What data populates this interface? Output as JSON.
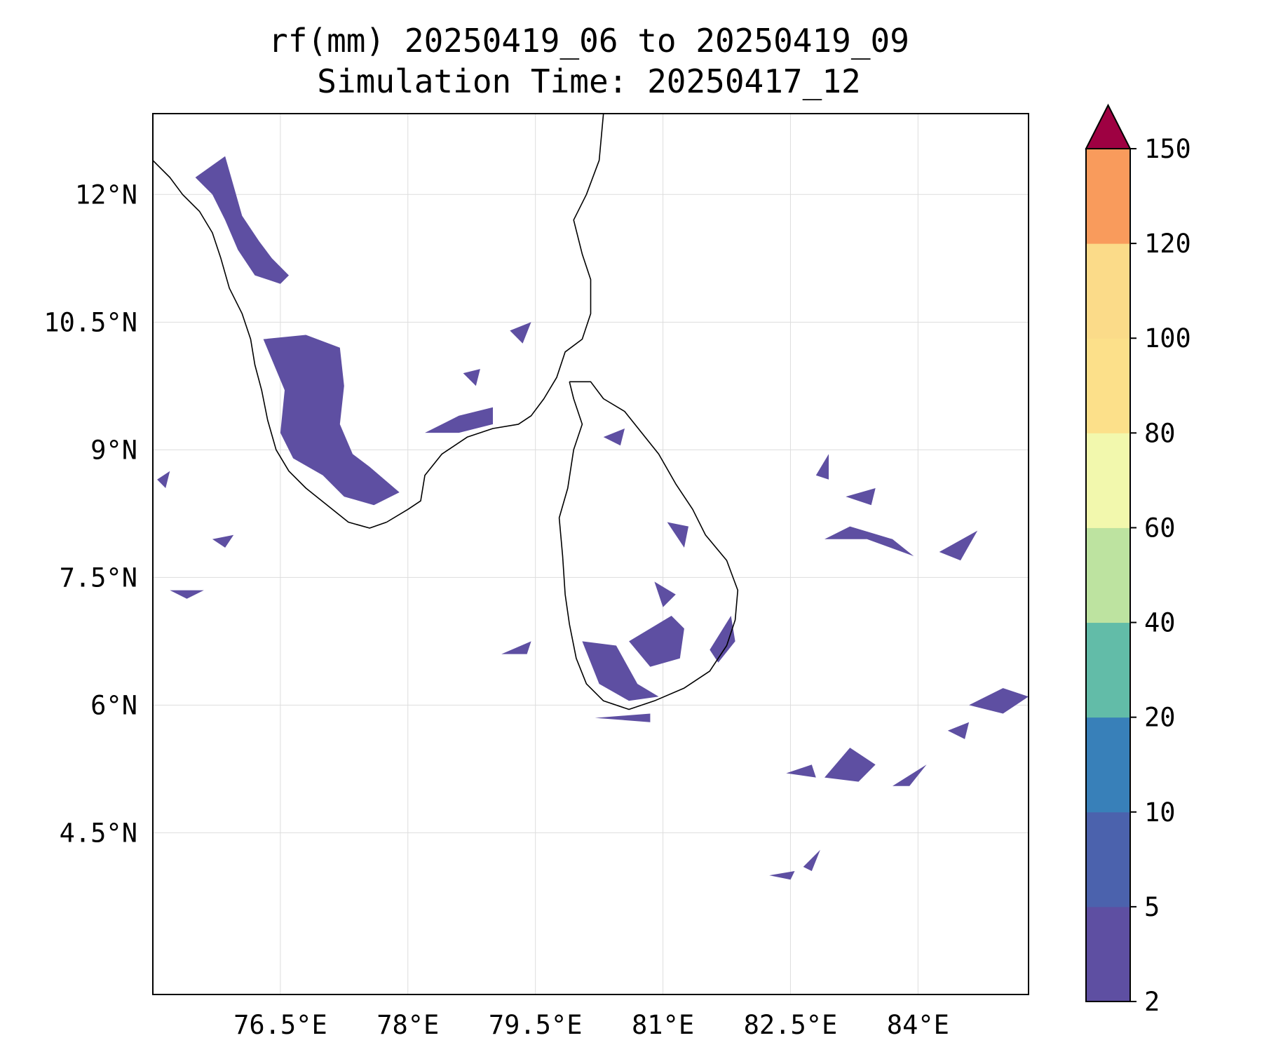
{
  "title": {
    "line1": "rf(mm) 20250419_06 to 20250419_09",
    "line2": "Simulation Time: 20250417_12"
  },
  "map": {
    "lon_range": [
      75.0,
      85.3
    ],
    "lat_range": [
      2.6,
      12.95
    ],
    "lon_ticks": [
      {
        "value": 76.5,
        "label": "76.5°E"
      },
      {
        "value": 78.0,
        "label": "78°E"
      },
      {
        "value": 79.5,
        "label": "79.5°E"
      },
      {
        "value": 81.0,
        "label": "81°E"
      },
      {
        "value": 82.5,
        "label": "82.5°E"
      },
      {
        "value": 84.0,
        "label": "84°E"
      }
    ],
    "lat_ticks": [
      {
        "value": 12.0,
        "label": "12°N"
      },
      {
        "value": 10.5,
        "label": "10.5°N"
      },
      {
        "value": 9.0,
        "label": "9°N"
      },
      {
        "value": 7.5,
        "label": "7.5°N"
      },
      {
        "value": 6.0,
        "label": "6°N"
      },
      {
        "value": 4.5,
        "label": "4.5°N"
      }
    ],
    "grid": true
  },
  "colorbar": {
    "levels": [
      2,
      5,
      10,
      20,
      40,
      60,
      80,
      100,
      120,
      150
    ],
    "colors": [
      "#5e4fa2",
      "#4b62ad",
      "#3880b9",
      "#62bca8",
      "#bde3a0",
      "#f2f8ad",
      "#fce08a",
      "#fbdb89",
      "#f99b5c",
      "#d53e4f"
    ],
    "extend_color": "#9e0142",
    "extend": "max"
  },
  "coastline": {
    "india_west": [
      [
        75.0,
        12.4
      ],
      [
        75.2,
        12.2
      ],
      [
        75.35,
        12.0
      ],
      [
        75.55,
        11.8
      ],
      [
        75.7,
        11.55
      ],
      [
        75.8,
        11.25
      ],
      [
        75.9,
        10.9
      ],
      [
        76.05,
        10.6
      ],
      [
        76.15,
        10.3
      ],
      [
        76.2,
        10.0
      ],
      [
        76.28,
        9.7
      ],
      [
        76.35,
        9.35
      ],
      [
        76.45,
        9.0
      ],
      [
        76.6,
        8.75
      ],
      [
        76.8,
        8.55
      ],
      [
        77.05,
        8.35
      ],
      [
        77.3,
        8.15
      ],
      [
        77.55,
        8.08
      ],
      [
        77.75,
        8.15
      ]
    ],
    "india_east": [
      [
        77.75,
        8.15
      ],
      [
        78.0,
        8.3
      ],
      [
        78.15,
        8.4
      ],
      [
        78.2,
        8.7
      ],
      [
        78.4,
        8.95
      ],
      [
        78.7,
        9.15
      ],
      [
        79.0,
        9.25
      ],
      [
        79.3,
        9.3
      ],
      [
        79.45,
        9.4
      ],
      [
        79.6,
        9.6
      ],
      [
        79.75,
        9.85
      ],
      [
        79.85,
        10.15
      ],
      [
        80.05,
        10.3
      ],
      [
        80.15,
        10.6
      ],
      [
        80.15,
        11.0
      ],
      [
        80.05,
        11.3
      ],
      [
        79.95,
        11.7
      ],
      [
        80.1,
        12.0
      ],
      [
        80.25,
        12.4
      ],
      [
        80.3,
        12.95
      ]
    ],
    "sri_lanka": [
      [
        79.9,
        9.8
      ],
      [
        80.15,
        9.8
      ],
      [
        80.3,
        9.6
      ],
      [
        80.55,
        9.45
      ],
      [
        80.75,
        9.2
      ],
      [
        80.95,
        8.95
      ],
      [
        81.15,
        8.6
      ],
      [
        81.35,
        8.3
      ],
      [
        81.5,
        8.0
      ],
      [
        81.75,
        7.7
      ],
      [
        81.88,
        7.35
      ],
      [
        81.85,
        7.0
      ],
      [
        81.75,
        6.7
      ],
      [
        81.55,
        6.4
      ],
      [
        81.25,
        6.2
      ],
      [
        80.9,
        6.05
      ],
      [
        80.6,
        5.95
      ],
      [
        80.3,
        6.05
      ],
      [
        80.1,
        6.25
      ],
      [
        79.98,
        6.55
      ],
      [
        79.9,
        6.95
      ],
      [
        79.85,
        7.3
      ],
      [
        79.82,
        7.75
      ],
      [
        79.78,
        8.2
      ],
      [
        79.88,
        8.55
      ],
      [
        79.95,
        9.0
      ],
      [
        80.05,
        9.3
      ],
      [
        79.95,
        9.6
      ],
      [
        79.9,
        9.8
      ]
    ]
  },
  "rain_polygons": [
    [
      [
        75.5,
        12.2
      ],
      [
        75.85,
        12.45
      ],
      [
        75.95,
        12.1
      ],
      [
        76.05,
        11.75
      ],
      [
        76.25,
        11.45
      ],
      [
        76.4,
        11.25
      ],
      [
        76.6,
        11.05
      ],
      [
        76.5,
        10.95
      ],
      [
        76.2,
        11.05
      ],
      [
        76.0,
        11.35
      ],
      [
        75.85,
        11.7
      ],
      [
        75.7,
        12.0
      ],
      [
        75.5,
        12.2
      ]
    ],
    [
      [
        76.3,
        10.3
      ],
      [
        76.8,
        10.35
      ],
      [
        77.2,
        10.2
      ],
      [
        77.25,
        9.75
      ],
      [
        77.2,
        9.3
      ],
      [
        77.35,
        8.95
      ],
      [
        77.55,
        8.8
      ],
      [
        77.9,
        8.5
      ],
      [
        77.6,
        8.35
      ],
      [
        77.25,
        8.45
      ],
      [
        77.0,
        8.7
      ],
      [
        76.65,
        8.9
      ],
      [
        76.5,
        9.2
      ],
      [
        76.55,
        9.7
      ],
      [
        76.3,
        10.3
      ]
    ],
    [
      [
        78.2,
        9.2
      ],
      [
        78.6,
        9.4
      ],
      [
        79.0,
        9.5
      ],
      [
        79.0,
        9.3
      ],
      [
        78.6,
        9.2
      ],
      [
        78.2,
        9.2
      ]
    ],
    [
      [
        80.3,
        9.15
      ],
      [
        80.55,
        9.25
      ],
      [
        80.5,
        9.05
      ],
      [
        80.3,
        9.15
      ]
    ],
    [
      [
        81.05,
        8.15
      ],
      [
        81.3,
        8.1
      ],
      [
        81.25,
        7.85
      ],
      [
        81.05,
        8.15
      ]
    ],
    [
      [
        80.9,
        7.45
      ],
      [
        81.15,
        7.3
      ],
      [
        81.0,
        7.15
      ],
      [
        80.9,
        7.45
      ]
    ],
    [
      [
        80.6,
        6.75
      ],
      [
        81.1,
        7.05
      ],
      [
        81.25,
        6.9
      ],
      [
        81.2,
        6.55
      ],
      [
        80.85,
        6.45
      ],
      [
        80.6,
        6.75
      ]
    ],
    [
      [
        81.55,
        6.65
      ],
      [
        81.8,
        7.05
      ],
      [
        81.85,
        6.75
      ],
      [
        81.65,
        6.5
      ],
      [
        81.55,
        6.65
      ]
    ],
    [
      [
        80.05,
        6.75
      ],
      [
        80.45,
        6.7
      ],
      [
        80.7,
        6.25
      ],
      [
        80.95,
        6.1
      ],
      [
        80.6,
        6.05
      ],
      [
        80.25,
        6.25
      ],
      [
        80.05,
        6.75
      ]
    ],
    [
      [
        80.2,
        5.85
      ],
      [
        80.85,
        5.9
      ],
      [
        80.85,
        5.8
      ],
      [
        80.2,
        5.85
      ]
    ],
    [
      [
        79.1,
        6.6
      ],
      [
        79.45,
        6.75
      ],
      [
        79.4,
        6.6
      ],
      [
        79.1,
        6.6
      ]
    ],
    [
      [
        82.45,
        5.2
      ],
      [
        82.75,
        5.3
      ],
      [
        82.8,
        5.15
      ],
      [
        82.45,
        5.2
      ]
    ],
    [
      [
        82.9,
        5.15
      ],
      [
        83.2,
        5.5
      ],
      [
        83.5,
        5.3
      ],
      [
        83.3,
        5.1
      ],
      [
        82.9,
        5.15
      ]
    ],
    [
      [
        83.7,
        5.05
      ],
      [
        84.1,
        5.3
      ],
      [
        83.9,
        5.05
      ],
      [
        83.7,
        5.05
      ]
    ],
    [
      [
        82.25,
        4.0
      ],
      [
        82.55,
        4.05
      ],
      [
        82.5,
        3.95
      ],
      [
        82.25,
        4.0
      ]
    ],
    [
      [
        82.65,
        4.1
      ],
      [
        82.85,
        4.3
      ],
      [
        82.75,
        4.05
      ],
      [
        82.65,
        4.1
      ]
    ],
    [
      [
        84.6,
        6.0
      ],
      [
        85.0,
        6.2
      ],
      [
        85.3,
        6.1
      ],
      [
        85.0,
        5.9
      ],
      [
        84.6,
        6.0
      ]
    ],
    [
      [
        84.35,
        5.7
      ],
      [
        84.6,
        5.8
      ],
      [
        84.55,
        5.6
      ],
      [
        84.35,
        5.7
      ]
    ],
    [
      [
        84.25,
        7.8
      ],
      [
        84.7,
        8.05
      ],
      [
        84.5,
        7.7
      ],
      [
        84.25,
        7.8
      ]
    ],
    [
      [
        82.9,
        7.95
      ],
      [
        83.4,
        7.95
      ],
      [
        83.95,
        7.75
      ],
      [
        83.7,
        7.95
      ],
      [
        83.2,
        8.1
      ],
      [
        82.9,
        7.95
      ]
    ],
    [
      [
        83.15,
        8.45
      ],
      [
        83.5,
        8.55
      ],
      [
        83.45,
        8.35
      ],
      [
        83.15,
        8.45
      ]
    ],
    [
      [
        82.8,
        8.7
      ],
      [
        82.95,
        8.95
      ],
      [
        82.95,
        8.65
      ],
      [
        82.8,
        8.7
      ]
    ],
    [
      [
        75.05,
        8.65
      ],
      [
        75.2,
        8.75
      ],
      [
        75.15,
        8.55
      ],
      [
        75.05,
        8.65
      ]
    ],
    [
      [
        75.7,
        7.95
      ],
      [
        75.95,
        8.0
      ],
      [
        75.85,
        7.85
      ],
      [
        75.7,
        7.95
      ]
    ],
    [
      [
        75.2,
        7.35
      ],
      [
        75.6,
        7.35
      ],
      [
        75.4,
        7.25
      ],
      [
        75.2,
        7.35
      ]
    ],
    [
      [
        79.2,
        10.4
      ],
      [
        79.45,
        10.5
      ],
      [
        79.35,
        10.25
      ],
      [
        79.2,
        10.4
      ]
    ],
    [
      [
        78.65,
        9.9
      ],
      [
        78.85,
        9.95
      ],
      [
        78.8,
        9.75
      ],
      [
        78.65,
        9.9
      ]
    ]
  ]
}
